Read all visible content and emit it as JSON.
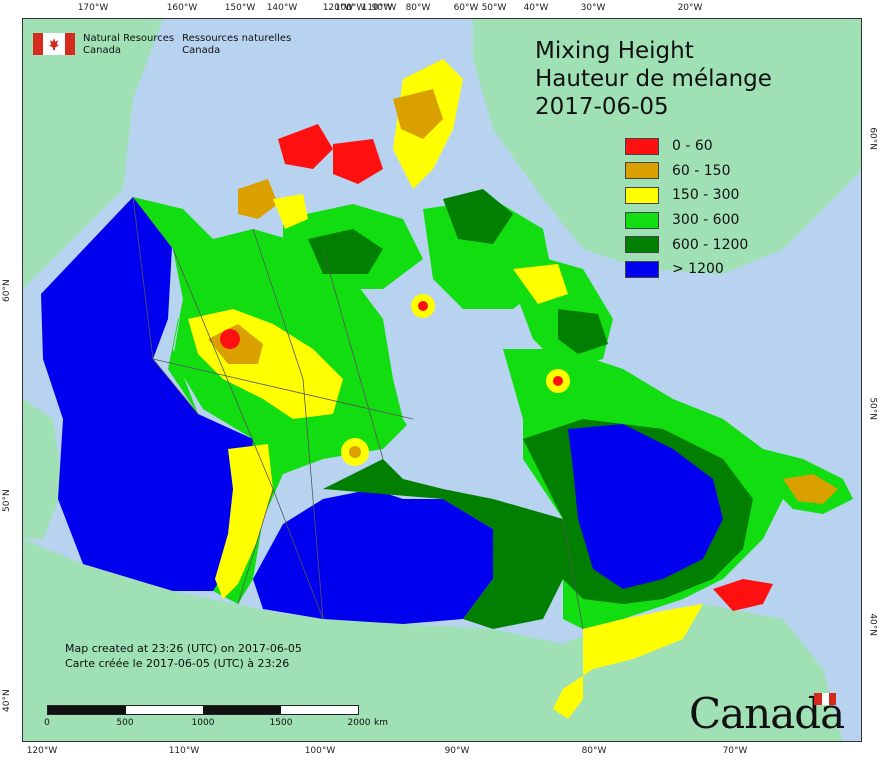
{
  "map": {
    "title_lines": [
      "Mixing Height",
      "Hauteur de mélange",
      "2017-06-05"
    ],
    "agency": {
      "en_line1": "Natural Resources",
      "en_line2": "Canada",
      "fr_line1": "Ressources naturelles",
      "fr_line2": "Canada"
    },
    "legend": [
      {
        "label": "0 - 60",
        "color": "#ff1010"
      },
      {
        "label": "60 - 150",
        "color": "#d9a000"
      },
      {
        "label": "150 - 300",
        "color": "#ffff00"
      },
      {
        "label": "300 - 600",
        "color": "#11dd11"
      },
      {
        "label": "600 - 1200",
        "color": "#007f00"
      },
      {
        "label": "> 1200",
        "color": "#0000ee"
      }
    ],
    "credit_en": "Map created at 23:26 (UTC) on 2017-06-05",
    "credit_fr": "Carte créée le 2017-06-05 (UTC) à 23:26",
    "scale": {
      "labels": [
        "0",
        "500",
        "1000",
        "1500",
        "2000"
      ],
      "unit": "km"
    },
    "wordmark": "Canada",
    "colors": {
      "ocean": "#b7d3ef",
      "neighbour_land": "#9fe0b5",
      "border_line": "#555555"
    },
    "ticks": {
      "top": [
        "170°W",
        "160°W",
        "150°W",
        "140°W",
        "120°W",
        "110°W",
        "100°W",
        "90°W",
        "80°W",
        "60°W",
        "50°W",
        "40°W",
        "30°W",
        "20°W"
      ],
      "bottom": [
        "120°W",
        "110°W",
        "100°W",
        "90°W",
        "80°W",
        "70°W"
      ],
      "left": [
        "60°N",
        "50°N",
        "40°N"
      ],
      "right": [
        "60°N",
        "50°N",
        "40°N"
      ]
    }
  }
}
